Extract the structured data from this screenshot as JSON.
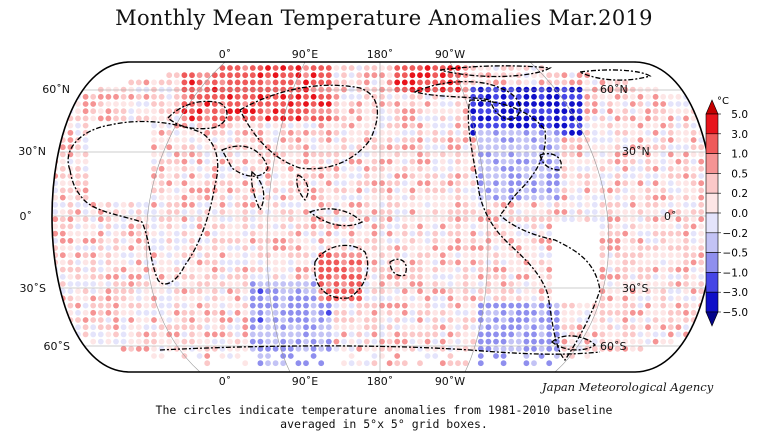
{
  "title": "Monthly Mean Temperature Anomalies Mar.2019",
  "credit": "Japan Meteorological Agency",
  "caption_line1": "The circles indicate temperature anomalies from 1981-2010 baseline",
  "caption_line2": "averaged in 5°x 5° grid boxes.",
  "lon_labels": [
    "0˚",
    "90˚E",
    "180˚",
    "90˚W"
  ],
  "lat_labels": [
    "60˚N",
    "30˚N",
    "0˚",
    "30˚S",
    "60˚S"
  ],
  "colorbar": {
    "unit": "°C",
    "ticks": [
      "5.0",
      "3.0",
      "1.0",
      "0.5",
      "0.2",
      "0.0",
      "−0.2",
      "−0.5",
      "−1.0",
      "−3.0",
      "−5.0"
    ],
    "colors": [
      "#c40000",
      "#e8141c",
      "#ef5a5a",
      "#f59494",
      "#fbc8c8",
      "#fde6e6",
      "#e4e4fb",
      "#c3c3f5",
      "#8f8fee",
      "#4646e6",
      "#1010c8",
      "#05058a"
    ]
  }
}
